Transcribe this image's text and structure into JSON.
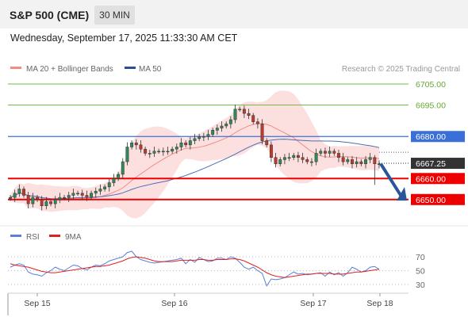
{
  "header": {
    "title": "S&P 500 (CME)",
    "timeframe": "30 MIN"
  },
  "datetime": "Wednesday, September 17, 2025 11:33:30 AM CET",
  "colors": {
    "bb_line": "#f28b82",
    "bb_fill": "#fbd5d5",
    "ma50": "#4a6fb5",
    "up": "#2e8b57",
    "down": "#c0392b",
    "target_green": "#77bb44",
    "pivot": "#3b6fd8",
    "support": "#ee0000",
    "arrow": "#2a5599",
    "rsi": "#5b7fd6",
    "rsi_ma": "#dd2222"
  },
  "chart_data": {
    "type": "candlestick",
    "legend": [
      {
        "label": "MA 20 + Bollinger Bands",
        "color": "#f28b82"
      },
      {
        "label": "MA 50",
        "color": "#2c4f8f"
      }
    ],
    "credit": "Research © 2025 Trading Central",
    "y_range": [
      6642,
      6708
    ],
    "x_labels": [
      "Sep 15",
      "Sep 16",
      "Sep 17",
      "Sep 18"
    ],
    "levels": [
      {
        "value": 6705.0,
        "label": "6705.00",
        "kind": "target"
      },
      {
        "value": 6695.0,
        "label": "6695.00",
        "kind": "target"
      },
      {
        "value": 6680.0,
        "label": "6680.00",
        "kind": "pivot"
      },
      {
        "value": 6667.25,
        "label": "6667.25",
        "kind": "last"
      },
      {
        "value": 6660.0,
        "label": "6660.00",
        "kind": "support"
      },
      {
        "value": 6650.0,
        "label": "6650.00",
        "kind": "support"
      }
    ],
    "ohlc_close": [
      6651,
      6653,
      6655,
      6652,
      6648,
      6651,
      6650,
      6647,
      6649,
      6648,
      6650,
      6651,
      6651,
      6652,
      6653,
      6653,
      6652,
      6651,
      6653,
      6654,
      6655,
      6656,
      6658,
      6660,
      6662,
      6668,
      6675,
      6677,
      6676,
      6674,
      6672,
      6672,
      6673,
      6673,
      6673,
      6673,
      6674,
      6675,
      6677,
      6676,
      6678,
      6679,
      6680,
      6680,
      6681,
      6683,
      6684,
      6685,
      6686,
      6688,
      6693,
      6693,
      6691,
      6690,
      6687,
      6686,
      6678,
      6676,
      6670,
      6667,
      6669,
      6670,
      6670,
      6671,
      6670,
      6669,
      6668,
      6668,
      6672,
      6673,
      6672,
      6673,
      6672,
      6670,
      6668,
      6669,
      6667,
      6668,
      6667,
      6669,
      6670,
      6667,
      6667
    ],
    "rsi": {
      "legend": [
        "RSI",
        "9MA"
      ],
      "levels": [
        70,
        50,
        30
      ],
      "values": [
        55,
        58,
        60,
        58,
        48,
        45,
        44,
        42,
        47,
        50,
        55,
        52,
        50,
        54,
        58,
        57,
        53,
        51,
        55,
        58,
        57,
        60,
        64,
        66,
        68,
        70,
        76,
        78,
        70,
        66,
        64,
        62,
        61,
        62,
        63,
        64,
        65,
        66,
        68,
        60,
        66,
        62,
        69,
        66,
        63,
        64,
        68,
        68,
        66,
        70,
        68,
        62,
        55,
        52,
        55,
        50,
        46,
        28,
        38,
        37,
        38,
        40,
        44,
        48,
        45,
        46,
        44,
        45,
        46,
        47,
        42,
        48,
        44,
        47,
        42,
        47,
        55,
        52,
        48,
        50,
        55,
        56,
        52
      ],
      "ma_values": [
        60,
        58,
        57,
        56,
        55,
        53,
        51,
        49,
        48,
        47,
        47,
        48,
        49,
        50,
        51,
        52,
        53,
        54,
        55,
        56,
        56,
        57,
        58,
        60,
        62,
        64,
        67,
        69,
        70,
        69,
        68,
        66,
        64,
        63,
        63,
        63,
        63,
        64,
        65,
        65,
        65,
        65,
        66,
        66,
        65,
        65,
        66,
        66,
        66,
        67,
        67,
        66,
        64,
        61,
        58,
        55,
        51,
        47,
        44,
        42,
        41,
        40,
        41,
        42,
        43,
        44,
        45,
        45,
        46,
        46,
        46,
        46,
        45,
        45,
        45,
        46,
        47,
        48,
        48,
        49,
        50,
        51,
        52
      ]
    }
  }
}
